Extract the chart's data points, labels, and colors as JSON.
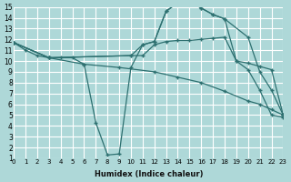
{
  "xlabel": "Humidex (Indice chaleur)",
  "bg_color": "#aed8d8",
  "grid_color": "#ffffff",
  "line_color": "#2d7070",
  "xlim": [
    0,
    23
  ],
  "ylim": [
    1,
    15
  ],
  "xticks": [
    0,
    1,
    2,
    3,
    4,
    5,
    6,
    7,
    8,
    9,
    10,
    11,
    12,
    13,
    14,
    15,
    16,
    17,
    18,
    19,
    20,
    21,
    22,
    23
  ],
  "yticks": [
    1,
    2,
    3,
    4,
    5,
    6,
    7,
    8,
    9,
    10,
    11,
    12,
    13,
    14,
    15
  ],
  "curve1_x": [
    0,
    1,
    2,
    3,
    4,
    5,
    6,
    7,
    8,
    9,
    10,
    11,
    12,
    13,
    14,
    15,
    16,
    17,
    18,
    19,
    20,
    21,
    22,
    23
  ],
  "curve1_y": [
    11.7,
    11.0,
    10.5,
    10.3,
    10.3,
    10.3,
    9.7,
    4.3,
    1.3,
    1.4,
    9.4,
    11.5,
    11.8,
    14.6,
    15.4,
    15.5,
    14.9,
    14.3,
    13.9,
    10.0,
    9.2,
    7.3,
    5.0,
    4.8
  ],
  "curve2_x": [
    0,
    3,
    10,
    11,
    12,
    13,
    14,
    15,
    16,
    17,
    18,
    20,
    21,
    22,
    23
  ],
  "curve2_y": [
    11.7,
    10.3,
    10.5,
    11.5,
    11.8,
    14.6,
    15.4,
    15.5,
    14.9,
    14.3,
    13.9,
    12.2,
    9.0,
    7.3,
    5.0
  ],
  "curve3_x": [
    0,
    3,
    10,
    11,
    12,
    13,
    14,
    15,
    16,
    17,
    18,
    19,
    20,
    21,
    22,
    23
  ],
  "curve3_y": [
    11.7,
    10.3,
    10.5,
    10.5,
    11.5,
    11.8,
    11.9,
    11.9,
    12.0,
    12.1,
    12.2,
    10.0,
    9.8,
    9.5,
    9.2,
    5.0
  ],
  "curve4_x": [
    0,
    3,
    6,
    9,
    12,
    14,
    16,
    18,
    20,
    21,
    22,
    23
  ],
  "curve4_y": [
    11.7,
    10.3,
    9.7,
    9.4,
    9.0,
    8.5,
    8.0,
    7.2,
    6.3,
    6.0,
    5.5,
    5.0
  ]
}
